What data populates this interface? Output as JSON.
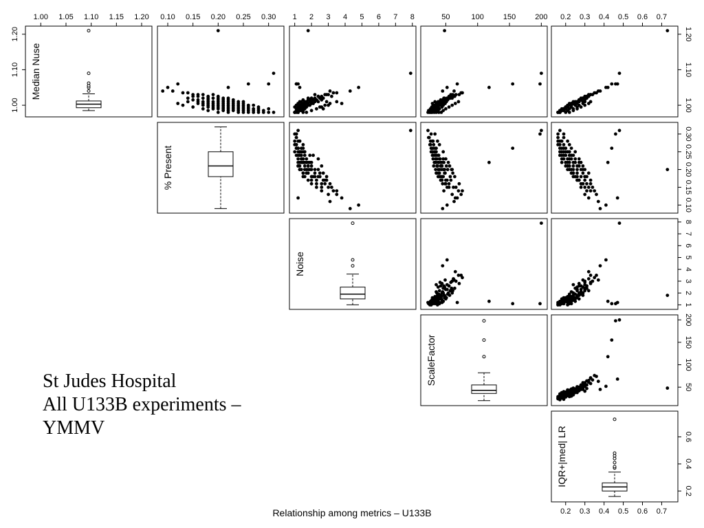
{
  "note": {
    "line1": "St Judes Hospital",
    "line2": "All U133B experiments –",
    "line3": "YMMV"
  },
  "caption": "Relationship among metrics – U133B",
  "chart_data": {
    "type": "scatter",
    "variables": [
      {
        "name": "Median Nuse",
        "range": [
          0.975,
          1.215
        ],
        "ticks": [
          1.0,
          1.05,
          1.1,
          1.15,
          1.2
        ],
        "tick_labels": [
          "1.00",
          "1.05",
          "1.10",
          "1.15",
          "1.20"
        ],
        "axis_ticks": [
          1.0,
          1.1,
          1.2
        ],
        "axis_tick_labels": [
          "1.00",
          "1.10",
          "1.20"
        ]
      },
      {
        "name": "% Present",
        "range": [
          0.085,
          0.325
        ],
        "ticks": [
          0.1,
          0.15,
          0.2,
          0.25,
          0.3
        ],
        "tick_labels": [
          "0.10",
          "0.15",
          "0.20",
          "0.25",
          "0.30"
        ],
        "axis_ticks": [
          0.1,
          0.15,
          0.2,
          0.25,
          0.3
        ],
        "axis_tick_labels": [
          "0.10",
          "0.15",
          "0.20",
          "0.25",
          "0.30"
        ]
      },
      {
        "name": "Noise",
        "range": [
          0.85,
          8.05
        ],
        "ticks": [
          1,
          2,
          3,
          4,
          5,
          6,
          7,
          8
        ],
        "tick_labels": [
          "1",
          "2",
          "3",
          "4",
          "5",
          "6",
          "7",
          "8"
        ],
        "axis_ticks": [
          1,
          2,
          3,
          4,
          5,
          6,
          7,
          8
        ],
        "axis_tick_labels": [
          "1",
          "2",
          "3",
          "4",
          "5",
          "6",
          "7",
          "8"
        ]
      },
      {
        "name": "ScaleFactor",
        "range": [
          15,
          205
        ],
        "ticks": [
          50,
          100,
          150,
          200
        ],
        "tick_labels": [
          "50",
          "100",
          "150",
          "200"
        ],
        "axis_ticks": [
          50,
          100,
          150,
          200
        ],
        "axis_tick_labels": [
          "50",
          "100",
          "150",
          "200"
        ]
      },
      {
        "name": "IQR+|med| LR",
        "range": [
          0.14,
          0.77
        ],
        "ticks": [
          0.2,
          0.3,
          0.4,
          0.5,
          0.6,
          0.7
        ],
        "tick_labels": [
          "0.2",
          "0.3",
          "0.4",
          "0.5",
          "0.6",
          "0.7"
        ],
        "axis_ticks": [
          0.2,
          0.4,
          0.6
        ],
        "axis_tick_labels": [
          "0.2",
          "0.4",
          "0.6"
        ]
      }
    ],
    "boxplots": [
      {
        "variable": "Median Nuse",
        "whisker_low": 0.985,
        "q1": 0.993,
        "median": 1.003,
        "q3": 1.012,
        "whisker_high": 1.032,
        "outliers": [
          1.04,
          1.05,
          1.055,
          1.062,
          1.09,
          1.21
        ]
      },
      {
        "variable": "% Present",
        "whisker_low": 0.09,
        "q1": 0.18,
        "median": 0.21,
        "q3": 0.25,
        "whisker_high": 0.32,
        "outliers": []
      },
      {
        "variable": "Noise",
        "whisker_low": 1.0,
        "q1": 1.5,
        "median": 1.9,
        "q3": 2.5,
        "whisker_high": 3.6,
        "outliers": [
          4.3,
          4.8,
          7.9
        ]
      },
      {
        "variable": "ScaleFactor",
        "whisker_low": 20,
        "q1": 36,
        "median": 43,
        "q3": 55,
        "whisker_high": 82,
        "outliers": [
          118,
          155,
          198
        ]
      },
      {
        "variable": "IQR+|med| LR",
        "whisker_low": 0.16,
        "q1": 0.2,
        "median": 0.23,
        "q3": 0.26,
        "whisker_high": 0.34,
        "outliers": [
          0.37,
          0.38,
          0.41,
          0.44,
          0.46,
          0.48,
          0.73
        ]
      }
    ],
    "observations": [
      [
        1.21,
        0.2,
        1.8,
        48,
        0.73
      ],
      [
        1.09,
        0.31,
        7.9,
        200,
        0.48
      ],
      [
        1.06,
        0.12,
        1.2,
        68,
        0.47
      ],
      [
        1.06,
        0.3,
        1.1,
        198,
        0.46
      ],
      [
        1.06,
        0.26,
        1.1,
        155,
        0.44
      ],
      [
        1.05,
        0.22,
        1.3,
        118,
        0.42
      ],
      [
        1.05,
        0.1,
        4.8,
        52,
        0.41
      ],
      [
        1.04,
        0.09,
        4.3,
        45,
        0.38
      ],
      [
        1.04,
        0.11,
        3.1,
        63,
        0.37
      ],
      [
        1.035,
        0.13,
        3.5,
        74,
        0.36
      ],
      [
        1.035,
        0.14,
        3.3,
        76,
        0.35
      ],
      [
        1.03,
        0.15,
        3.0,
        66,
        0.34
      ],
      [
        1.03,
        0.16,
        2.8,
        71,
        0.33
      ],
      [
        1.03,
        0.17,
        2.9,
        58,
        0.33
      ],
      [
        1.025,
        0.15,
        3.2,
        62,
        0.32
      ],
      [
        1.025,
        0.16,
        2.6,
        55,
        0.31
      ],
      [
        1.025,
        0.18,
        2.4,
        64,
        0.31
      ],
      [
        1.02,
        0.17,
        2.7,
        52,
        0.3
      ],
      [
        1.02,
        0.18,
        2.2,
        57,
        0.3
      ],
      [
        1.02,
        0.19,
        2.5,
        48,
        0.29
      ],
      [
        1.02,
        0.2,
        2.0,
        60,
        0.29
      ],
      [
        1.015,
        0.16,
        2.3,
        50,
        0.28
      ],
      [
        1.015,
        0.18,
        2.1,
        45,
        0.28
      ],
      [
        1.015,
        0.2,
        1.9,
        53,
        0.28
      ],
      [
        1.015,
        0.21,
        2.6,
        42,
        0.27
      ],
      [
        1.015,
        0.22,
        1.8,
        47,
        0.27
      ],
      [
        1.01,
        0.17,
        2.0,
        44,
        0.27
      ],
      [
        1.01,
        0.19,
        1.7,
        49,
        0.26
      ],
      [
        1.01,
        0.2,
        2.2,
        40,
        0.26
      ],
      [
        1.01,
        0.21,
        1.6,
        51,
        0.26
      ],
      [
        1.01,
        0.22,
        1.9,
        38,
        0.25
      ],
      [
        1.01,
        0.23,
        2.4,
        46,
        0.25
      ],
      [
        1.005,
        0.18,
        1.5,
        43,
        0.25
      ],
      [
        1.005,
        0.19,
        1.8,
        39,
        0.24
      ],
      [
        1.005,
        0.2,
        1.6,
        48,
        0.24
      ],
      [
        1.005,
        0.21,
        2.0,
        36,
        0.24
      ],
      [
        1.005,
        0.22,
        1.4,
        44,
        0.24
      ],
      [
        1.005,
        0.23,
        1.7,
        41,
        0.23
      ],
      [
        1.005,
        0.24,
        2.1,
        35,
        0.23
      ],
      [
        1.0,
        0.19,
        1.5,
        40,
        0.23
      ],
      [
        1.0,
        0.2,
        1.3,
        46,
        0.23
      ],
      [
        1.0,
        0.21,
        1.8,
        37,
        0.22
      ],
      [
        1.0,
        0.22,
        1.6,
        42,
        0.22
      ],
      [
        1.0,
        0.23,
        1.4,
        34,
        0.22
      ],
      [
        1.0,
        0.24,
        1.9,
        39,
        0.22
      ],
      [
        1.0,
        0.25,
        1.5,
        32,
        0.21
      ],
      [
        0.995,
        0.2,
        1.4,
        38,
        0.21
      ],
      [
        0.995,
        0.21,
        1.2,
        44,
        0.21
      ],
      [
        0.995,
        0.22,
        1.7,
        33,
        0.21
      ],
      [
        0.995,
        0.23,
        1.5,
        36,
        0.21
      ],
      [
        0.995,
        0.24,
        1.3,
        30,
        0.2
      ],
      [
        0.995,
        0.25,
        1.6,
        35,
        0.2
      ],
      [
        0.995,
        0.26,
        1.4,
        28,
        0.2
      ],
      [
        0.99,
        0.21,
        1.3,
        37,
        0.2
      ],
      [
        0.99,
        0.22,
        1.5,
        32,
        0.2
      ],
      [
        0.99,
        0.23,
        1.2,
        40,
        0.19
      ],
      [
        0.99,
        0.24,
        1.6,
        29,
        0.19
      ],
      [
        0.99,
        0.25,
        1.4,
        34,
        0.19
      ],
      [
        0.99,
        0.26,
        1.2,
        27,
        0.19
      ],
      [
        0.99,
        0.27,
        1.5,
        31,
        0.19
      ],
      [
        0.985,
        0.22,
        1.2,
        35,
        0.18
      ],
      [
        0.985,
        0.23,
        1.4,
        30,
        0.18
      ],
      [
        0.985,
        0.24,
        1.1,
        38,
        0.18
      ],
      [
        0.985,
        0.25,
        1.3,
        28,
        0.18
      ],
      [
        0.985,
        0.26,
        1.5,
        33,
        0.18
      ],
      [
        0.985,
        0.27,
        1.1,
        26,
        0.17
      ],
      [
        0.985,
        0.28,
        1.3,
        30,
        0.17
      ],
      [
        0.98,
        0.24,
        1.2,
        32,
        0.17
      ],
      [
        0.98,
        0.25,
        1.0,
        27,
        0.17
      ],
      [
        0.98,
        0.26,
        1.2,
        35,
        0.17
      ],
      [
        0.98,
        0.27,
        1.0,
        25,
        0.16
      ],
      [
        0.98,
        0.28,
        1.2,
        29,
        0.16
      ],
      [
        0.98,
        0.29,
        1.1,
        24,
        0.16
      ],
      [
        0.98,
        0.3,
        1.0,
        27,
        0.16
      ],
      [
        1.02,
        0.14,
        2.6,
        47,
        0.31
      ],
      [
        1.015,
        0.15,
        2.3,
        52,
        0.3
      ],
      [
        1.01,
        0.16,
        2.0,
        45,
        0.29
      ],
      [
        1.005,
        0.17,
        1.8,
        42,
        0.26
      ],
      [
        1.0,
        0.18,
        1.6,
        39,
        0.25
      ],
      [
        0.995,
        0.19,
        1.5,
        36,
        0.23
      ],
      [
        0.99,
        0.2,
        1.3,
        34,
        0.22
      ],
      [
        0.985,
        0.21,
        1.2,
        31,
        0.21
      ],
      [
        1.01,
        0.18,
        2.9,
        41,
        0.3
      ],
      [
        1.005,
        0.16,
        3.1,
        49,
        0.29
      ],
      [
        1.0,
        0.17,
        2.8,
        44,
        0.27
      ],
      [
        0.995,
        0.18,
        2.5,
        38,
        0.26
      ],
      [
        0.99,
        0.19,
        2.7,
        35,
        0.24
      ],
      [
        1.0,
        0.26,
        1.1,
        30,
        0.23
      ],
      [
        1.005,
        0.25,
        1.2,
        29,
        0.22
      ],
      [
        1.01,
        0.24,
        1.4,
        33,
        0.24
      ],
      [
        0.99,
        0.28,
        1.3,
        26,
        0.18
      ],
      [
        0.985,
        0.29,
        1.1,
        23,
        0.19
      ],
      [
        0.98,
        0.31,
        1.2,
        22,
        0.17
      ],
      [
        1.03,
        0.19,
        2.2,
        61,
        0.32
      ],
      [
        1.02,
        0.21,
        1.8,
        56,
        0.29
      ],
      [
        1.015,
        0.23,
        1.5,
        50,
        0.27
      ],
      [
        1.01,
        0.25,
        1.3,
        46,
        0.25
      ],
      [
        1.0,
        0.27,
        1.1,
        40,
        0.22
      ],
      [
        0.995,
        0.28,
        1.0,
        37,
        0.21
      ],
      [
        0.99,
        0.3,
        1.1,
        33,
        0.19
      ],
      [
        1.025,
        0.2,
        2.4,
        59,
        0.3
      ],
      [
        1.02,
        0.22,
        2.0,
        54,
        0.28
      ],
      [
        1.01,
        0.14,
        3.5,
        70,
        0.33
      ],
      [
        1.005,
        0.12,
        3.8,
        65,
        0.32
      ],
      [
        1.0,
        0.13,
        3.0,
        60,
        0.3
      ],
      [
        0.995,
        0.15,
        2.6,
        55,
        0.28
      ],
      [
        0.99,
        0.17,
        2.3,
        50,
        0.26
      ],
      [
        0.985,
        0.18,
        2.0,
        46,
        0.24
      ],
      [
        0.98,
        0.2,
        1.7,
        43,
        0.22
      ],
      [
        0.98,
        0.22,
        1.5,
        39,
        0.2
      ]
    ]
  }
}
